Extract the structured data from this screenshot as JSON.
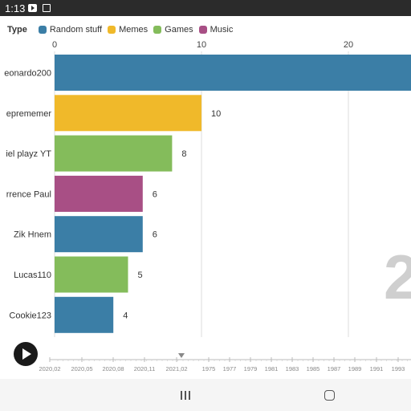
{
  "status_bar": {
    "time": "1:13",
    "icons": [
      "youtube-icon",
      "calendar-icon"
    ]
  },
  "legend": {
    "title": "Type",
    "items": [
      {
        "label": "Random stuff",
        "color": "#3b7ea6"
      },
      {
        "label": "Memes",
        "color": "#f0b92a"
      },
      {
        "label": "Games",
        "color": "#84bc5b"
      },
      {
        "label": "Music",
        "color": "#a84f85"
      }
    ]
  },
  "chart_data": {
    "type": "bar",
    "orientation": "horizontal",
    "categories": [
      "eonardo200",
      "eprememer",
      "iel playz YT",
      "rrence Paul",
      "Zik Hnem",
      "Lucas110",
      "Cookie123"
    ],
    "values": [
      25,
      10,
      8,
      6,
      6,
      5,
      4
    ],
    "value_labels": [
      "",
      "10",
      "8",
      "6",
      "6",
      "5",
      "4"
    ],
    "series_types": [
      "Random stuff",
      "Memes",
      "Games",
      "Music",
      "Random stuff",
      "Games",
      "Random stuff"
    ],
    "x_ticks": [
      "0",
      "10",
      "20"
    ],
    "xlim": [
      0,
      24
    ],
    "grid": true,
    "big_year_label": "2"
  },
  "play_button": {
    "icon": "play-icon"
  },
  "timeline": {
    "labels": [
      "2020,02",
      "2020,05",
      "2020,08",
      "2020,11",
      "2021,02",
      "1975",
      "1977",
      "1979",
      "1981",
      "1983",
      "1985",
      "1987",
      "1989",
      "1991",
      "1993"
    ],
    "current_marker": "2021,02"
  },
  "nav_bar": {
    "icons": [
      "recents-icon",
      "home-icon"
    ]
  }
}
